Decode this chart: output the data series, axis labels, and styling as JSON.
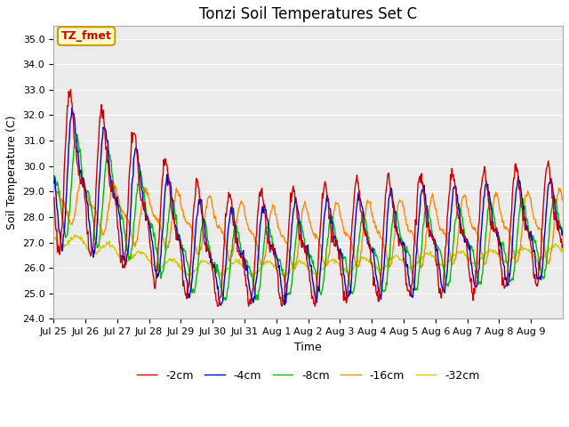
{
  "title": "Tonzi Soil Temperatures Set C",
  "xlabel": "Time",
  "ylabel": "Soil Temperature (C)",
  "ylim": [
    24.0,
    35.5
  ],
  "yticks": [
    24.0,
    25.0,
    26.0,
    27.0,
    28.0,
    29.0,
    30.0,
    31.0,
    32.0,
    33.0,
    34.0,
    35.0
  ],
  "bg_color": "#ebebeb",
  "fig_color": "#ffffff",
  "annotation_text": "TZ_fmet",
  "annotation_bg": "#ffffcc",
  "annotation_border": "#cc9900",
  "annotation_text_color": "#cc0000",
  "series": [
    {
      "label": "-2cm",
      "color": "#cc0000",
      "linewidth": 1.0
    },
    {
      "label": "-4cm",
      "color": "#0000cc",
      "linewidth": 1.0
    },
    {
      "label": "-8cm",
      "color": "#00bb00",
      "linewidth": 1.0
    },
    {
      "label": "-16cm",
      "color": "#ff8800",
      "linewidth": 1.0
    },
    {
      "label": "-32cm",
      "color": "#cccc00",
      "linewidth": 1.0
    }
  ],
  "xtick_labels": [
    "Jul 25",
    "Jul 26",
    "Jul 27",
    "Jul 28",
    "Jul 29",
    "Jul 30",
    "Jul 31",
    "Aug 1",
    "Aug 2",
    "Aug 3",
    "Aug 4",
    "Aug 5",
    "Aug 6",
    "Aug 7",
    "Aug 8",
    "Aug 9"
  ],
  "grid_color": "#ffffff",
  "title_fontsize": 12,
  "axis_fontsize": 9,
  "tick_fontsize": 8,
  "legend_fontsize": 9
}
